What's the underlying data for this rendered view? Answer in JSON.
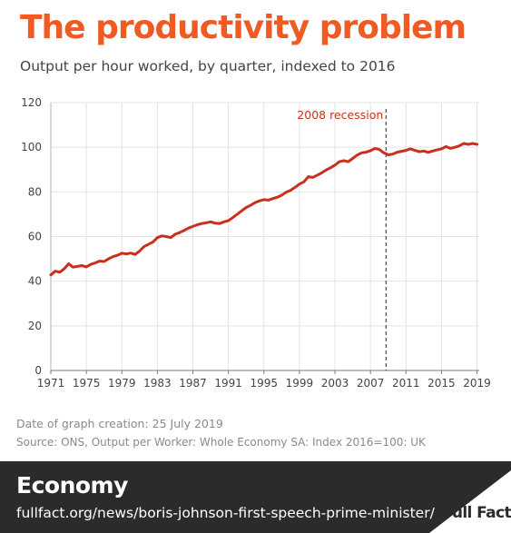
{
  "header": {
    "title": "The productivity problem",
    "subtitle": "Output per hour worked, by quarter, indexed to 2016"
  },
  "notes": {
    "date": "Date of graph creation: 25 July 2019",
    "source": "Source: ONS, Output per Worker: Whole Economy SA: Index 2016=100: UK"
  },
  "footer": {
    "section": "Economy",
    "link": "fullfact.org/news/boris-johnson-first-speech-prime-minister/",
    "logo_text": "Full Fact"
  },
  "colors": {
    "title": "#f05a23",
    "line": "#c9301c",
    "annotation": "#c9301c",
    "footer_bg": "#2b2b2b"
  },
  "chart_data": {
    "type": "line",
    "title": "",
    "xlabel": "",
    "ylabel": "",
    "xlim": [
      1971,
      2019.25
    ],
    "ylim": [
      0,
      120
    ],
    "yticks": [
      0,
      20,
      40,
      60,
      80,
      100,
      120
    ],
    "xticks": [
      1971,
      1975,
      1979,
      1983,
      1987,
      1991,
      1995,
      1999,
      2003,
      2007,
      2011,
      2015,
      2019
    ],
    "grid": true,
    "legend": "none",
    "annotations": [
      {
        "label": "2008 recession",
        "x": 2008.75,
        "style": "dashed-vertical-line"
      }
    ],
    "series": [
      {
        "name": "",
        "points": [
          [
            1971.0,
            42.8
          ],
          [
            1971.5,
            44.5
          ],
          [
            1972.0,
            44.0
          ],
          [
            1972.5,
            45.5
          ],
          [
            1973.0,
            47.8
          ],
          [
            1973.5,
            46.3
          ],
          [
            1974.0,
            46.6
          ],
          [
            1974.5,
            47.0
          ],
          [
            1975.0,
            46.4
          ],
          [
            1975.5,
            47.5
          ],
          [
            1976.0,
            48.2
          ],
          [
            1976.5,
            49.0
          ],
          [
            1977.0,
            48.8
          ],
          [
            1977.5,
            50.0
          ],
          [
            1978.0,
            51.0
          ],
          [
            1978.5,
            51.6
          ],
          [
            1979.0,
            52.5
          ],
          [
            1979.5,
            52.2
          ],
          [
            1980.0,
            52.6
          ],
          [
            1980.5,
            52.0
          ],
          [
            1981.0,
            53.5
          ],
          [
            1981.5,
            55.5
          ],
          [
            1982.0,
            56.5
          ],
          [
            1982.5,
            57.5
          ],
          [
            1983.0,
            59.5
          ],
          [
            1983.5,
            60.3
          ],
          [
            1984.0,
            60.0
          ],
          [
            1984.5,
            59.5
          ],
          [
            1985.0,
            61.0
          ],
          [
            1985.5,
            61.8
          ],
          [
            1986.0,
            62.7
          ],
          [
            1986.5,
            63.8
          ],
          [
            1987.0,
            64.5
          ],
          [
            1987.5,
            65.3
          ],
          [
            1988.0,
            65.8
          ],
          [
            1988.5,
            66.2
          ],
          [
            1989.0,
            66.6
          ],
          [
            1989.5,
            66.0
          ],
          [
            1990.0,
            65.8
          ],
          [
            1990.5,
            66.6
          ],
          [
            1991.0,
            67.1
          ],
          [
            1991.5,
            68.5
          ],
          [
            1992.0,
            70.0
          ],
          [
            1992.5,
            71.5
          ],
          [
            1993.0,
            73.0
          ],
          [
            1993.5,
            74.0
          ],
          [
            1994.0,
            75.2
          ],
          [
            1994.5,
            76.0
          ],
          [
            1995.0,
            76.5
          ],
          [
            1995.5,
            76.3
          ],
          [
            1996.0,
            77.0
          ],
          [
            1996.5,
            77.6
          ],
          [
            1997.0,
            78.5
          ],
          [
            1997.5,
            79.8
          ],
          [
            1998.0,
            80.7
          ],
          [
            1998.5,
            82.0
          ],
          [
            1999.0,
            83.5
          ],
          [
            1999.5,
            84.5
          ],
          [
            2000.0,
            86.8
          ],
          [
            2000.5,
            86.5
          ],
          [
            2001.0,
            87.5
          ],
          [
            2001.5,
            88.5
          ],
          [
            2002.0,
            89.8
          ],
          [
            2002.5,
            90.8
          ],
          [
            2003.0,
            92.0
          ],
          [
            2003.5,
            93.5
          ],
          [
            2004.0,
            94.0
          ],
          [
            2004.5,
            93.5
          ],
          [
            2005.0,
            95.0
          ],
          [
            2005.5,
            96.5
          ],
          [
            2006.0,
            97.5
          ],
          [
            2006.5,
            97.8
          ],
          [
            2007.0,
            98.5
          ],
          [
            2007.5,
            99.5
          ],
          [
            2008.0,
            99.0
          ],
          [
            2008.5,
            97.5
          ],
          [
            2009.0,
            96.6
          ],
          [
            2009.5,
            96.9
          ],
          [
            2010.0,
            97.8
          ],
          [
            2010.5,
            98.2
          ],
          [
            2011.0,
            98.6
          ],
          [
            2011.5,
            99.3
          ],
          [
            2012.0,
            98.6
          ],
          [
            2012.5,
            98.0
          ],
          [
            2013.0,
            98.3
          ],
          [
            2013.5,
            97.7
          ],
          [
            2014.0,
            98.3
          ],
          [
            2014.5,
            98.8
          ],
          [
            2015.0,
            99.3
          ],
          [
            2015.5,
            100.3
          ],
          [
            2016.0,
            99.5
          ],
          [
            2016.5,
            100.0
          ],
          [
            2017.0,
            100.6
          ],
          [
            2017.5,
            101.7
          ],
          [
            2018.0,
            101.3
          ],
          [
            2018.5,
            101.7
          ],
          [
            2019.0,
            101.3
          ]
        ]
      }
    ]
  }
}
